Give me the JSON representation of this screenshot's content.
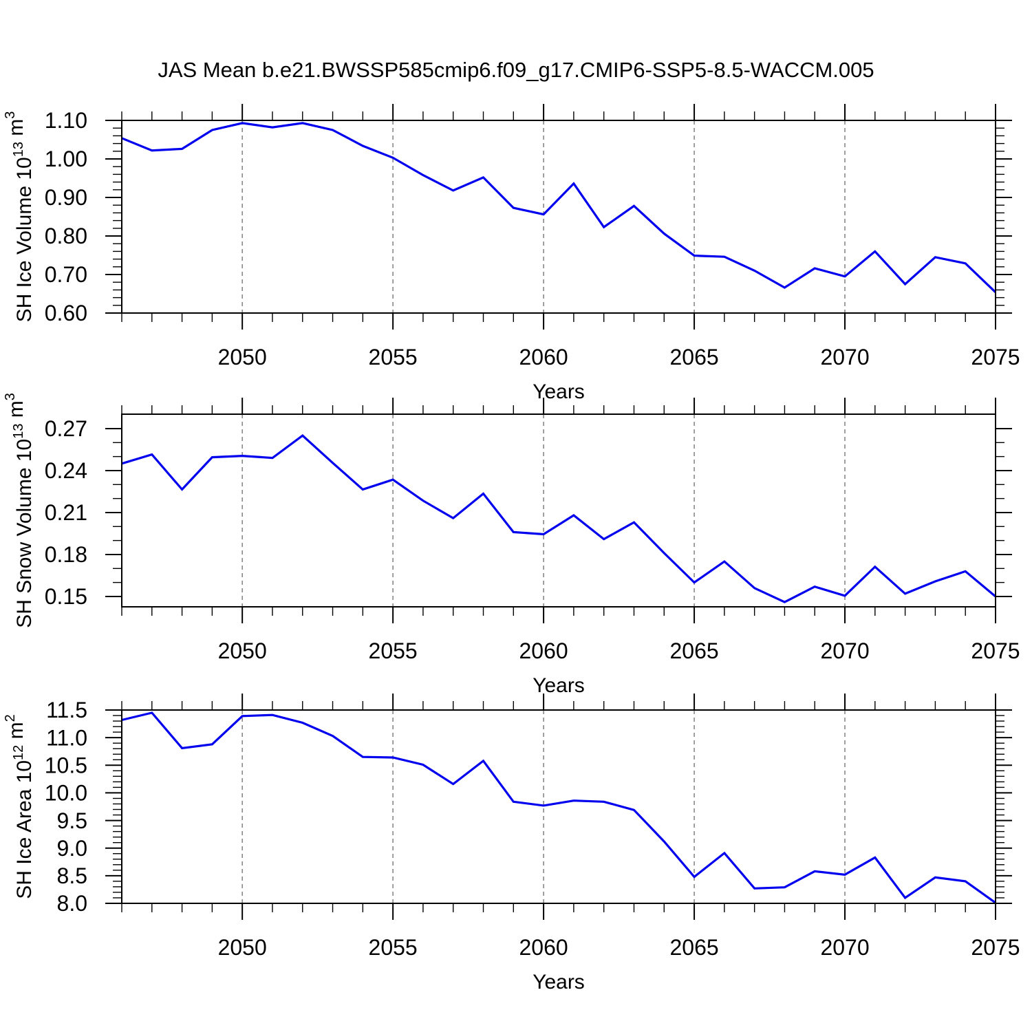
{
  "title": "JAS Mean b.e21.BWSSP585cmip6.f09_g17.CMIP6-SSP5-8.5-WACCM.005",
  "colors": {
    "line": "#0000ee",
    "grid": "#808080",
    "axis": "#000000",
    "background": "#ffffff"
  },
  "years": [
    2046,
    2047,
    2048,
    2049,
    2050,
    2051,
    2052,
    2053,
    2054,
    2055,
    2056,
    2057,
    2058,
    2059,
    2060,
    2061,
    2062,
    2063,
    2064,
    2065,
    2066,
    2067,
    2068,
    2069,
    2070,
    2071,
    2072,
    2073,
    2074,
    2075
  ],
  "chart_data": [
    {
      "type": "line",
      "name": "sh-ice-volume",
      "ylabel_text": "SH Ice Volume 10¹³ m³",
      "ylabel_parts": [
        {
          "t": "SH Ice Volume 10",
          "sup": false
        },
        {
          "t": "13",
          "sup": true
        },
        {
          "t": " m",
          "sup": false
        },
        {
          "t": "3",
          "sup": true
        }
      ],
      "xlabel": "Years",
      "xlim": [
        2046,
        2075
      ],
      "ylim": [
        0.6,
        1.1
      ],
      "x_major": [
        2050,
        2055,
        2060,
        2065,
        2070,
        2075
      ],
      "x_minor_step": 1,
      "gridlines_x": [
        2050,
        2055,
        2060,
        2065,
        2070
      ],
      "y_major": {
        "values": [
          0.6,
          0.7,
          0.8,
          0.9,
          1.0,
          1.1
        ],
        "labels": [
          "0.60",
          "0.70",
          "0.80",
          "0.90",
          "1.00",
          "1.10"
        ]
      },
      "y_minor_step": 0.02,
      "values": [
        1.054,
        1.022,
        1.026,
        1.075,
        1.093,
        1.082,
        1.093,
        1.075,
        1.034,
        1.003,
        0.958,
        0.918,
        0.952,
        0.873,
        0.856,
        0.936,
        0.823,
        0.878,
        0.806,
        0.749,
        0.746,
        0.71,
        0.666,
        0.716,
        0.695,
        0.76,
        0.675,
        0.745,
        0.729,
        0.654
      ]
    },
    {
      "type": "line",
      "name": "sh-snow-volume",
      "ylabel_text": "SH Snow Volume 10¹³ m³",
      "ylabel_parts": [
        {
          "t": "SH Snow Volume 10",
          "sup": false
        },
        {
          "t": "13",
          "sup": true
        },
        {
          "t": " m",
          "sup": false
        },
        {
          "t": "3",
          "sup": true
        }
      ],
      "xlabel": "Years",
      "xlim": [
        2046,
        2075
      ],
      "ylim": [
        0.1426,
        0.2803
      ],
      "x_major": [
        2050,
        2055,
        2060,
        2065,
        2070,
        2075
      ],
      "x_minor_step": 1,
      "gridlines_x": [
        2050,
        2055,
        2060,
        2065,
        2070
      ],
      "y_major": {
        "values": [
          0.15,
          0.18,
          0.21,
          0.24,
          0.27
        ],
        "labels": [
          "0.15",
          "0.18",
          "0.21",
          "0.24",
          "0.27"
        ]
      },
      "y_minor_step": 0.01,
      "values": [
        0.245,
        0.2515,
        0.2265,
        0.2495,
        0.2505,
        0.249,
        0.265,
        0.2455,
        0.2265,
        0.2335,
        0.2185,
        0.206,
        0.2235,
        0.196,
        0.1945,
        0.208,
        0.191,
        0.203,
        0.181,
        0.16,
        0.175,
        0.156,
        0.146,
        0.157,
        0.1505,
        0.1712,
        0.152,
        0.1608,
        0.168,
        0.15
      ]
    },
    {
      "type": "line",
      "name": "sh-ice-area",
      "ylabel_text": "SH Ice Area 10¹² m²",
      "ylabel_parts": [
        {
          "t": "SH Ice Area 10",
          "sup": false
        },
        {
          "t": "12",
          "sup": true
        },
        {
          "t": " m",
          "sup": false
        },
        {
          "t": "2",
          "sup": true
        }
      ],
      "xlabel": "Years",
      "xlim": [
        2046,
        2075
      ],
      "ylim": [
        8.0,
        11.5
      ],
      "x_major": [
        2050,
        2055,
        2060,
        2065,
        2070,
        2075
      ],
      "x_minor_step": 1,
      "gridlines_x": [
        2050,
        2055,
        2060,
        2065,
        2070
      ],
      "y_major": {
        "values": [
          8.0,
          8.5,
          9.0,
          9.5,
          10.0,
          10.5,
          11.0,
          11.5
        ],
        "labels": [
          "8.0",
          "8.5",
          "9.0",
          "9.5",
          "10.0",
          "10.5",
          "11.0",
          "11.5"
        ]
      },
      "y_minor_step": 0.1,
      "values": [
        11.32,
        11.45,
        10.81,
        10.88,
        11.39,
        11.41,
        11.27,
        11.03,
        10.65,
        10.64,
        10.51,
        10.16,
        10.58,
        9.84,
        9.77,
        9.86,
        9.84,
        9.69,
        9.12,
        8.48,
        8.91,
        8.27,
        8.29,
        8.58,
        8.52,
        8.83,
        8.1,
        8.47,
        8.4,
        8.01
      ]
    }
  ]
}
